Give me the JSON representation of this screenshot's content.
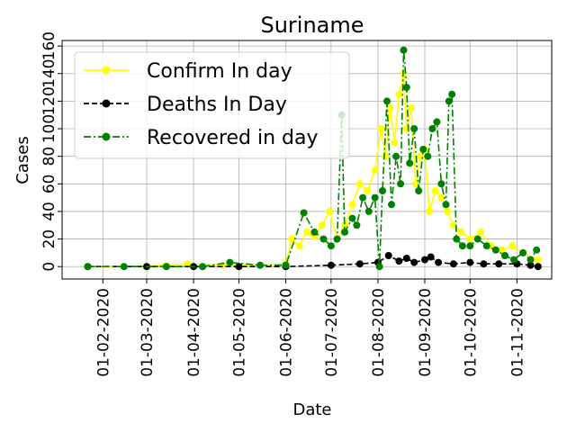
{
  "chart_data": {
    "type": "line",
    "title": "Suriname",
    "xlabel": "Date",
    "ylabel": "Cases",
    "xlim": [
      "2020-01-05",
      "2020-11-24"
    ],
    "ylim": [
      -9,
      164
    ],
    "grid": true,
    "legend_position": "top-left",
    "x_ticks": [
      "01-02-2020",
      "01-03-2020",
      "01-04-2020",
      "01-05-2020",
      "01-06-2020",
      "01-07-2020",
      "01-08-2020",
      "01-09-2020",
      "01-10-2020",
      "01-11-2020"
    ],
    "y_ticks": [
      0,
      20,
      40,
      60,
      80,
      100,
      120,
      140,
      160
    ],
    "series": [
      {
        "name": "Confirm In day",
        "color": "#ffff00",
        "style": "solid",
        "x": [
          "2020-01-22",
          "2020-02-15",
          "2020-03-14",
          "2020-03-28",
          "2020-04-20",
          "2020-05-15",
          "2020-06-01",
          "2020-06-05",
          "2020-06-10",
          "2020-06-15",
          "2020-06-20",
          "2020-06-25",
          "2020-06-30",
          "2020-07-05",
          "2020-07-10",
          "2020-07-15",
          "2020-07-20",
          "2020-07-25",
          "2020-07-30",
          "2020-08-03",
          "2020-08-06",
          "2020-08-09",
          "2020-08-12",
          "2020-08-15",
          "2020-08-18",
          "2020-08-20",
          "2020-08-23",
          "2020-08-26",
          "2020-08-29",
          "2020-09-01",
          "2020-09-04",
          "2020-09-08",
          "2020-09-12",
          "2020-09-16",
          "2020-09-20",
          "2020-09-25",
          "2020-10-01",
          "2020-10-08",
          "2020-10-15",
          "2020-10-22",
          "2020-10-29",
          "2020-11-05",
          "2020-11-15"
        ],
        "values": [
          0,
          0,
          1,
          2,
          1,
          1,
          2,
          20,
          15,
          25,
          22,
          30,
          40,
          20,
          30,
          45,
          60,
          55,
          70,
          100,
          80,
          115,
          90,
          125,
          140,
          100,
          115,
          60,
          80,
          85,
          40,
          55,
          50,
          40,
          30,
          25,
          20,
          25,
          15,
          12,
          15,
          10,
          5
        ]
      },
      {
        "name": "Deaths In Day",
        "color": "#000000",
        "style": "dashed",
        "x": [
          "2020-01-22",
          "2020-03-01",
          "2020-04-01",
          "2020-05-01",
          "2020-06-01",
          "2020-07-01",
          "2020-07-20",
          "2020-08-01",
          "2020-08-08",
          "2020-08-15",
          "2020-08-20",
          "2020-08-25",
          "2020-09-01",
          "2020-09-05",
          "2020-09-10",
          "2020-09-20",
          "2020-10-01",
          "2020-10-10",
          "2020-10-20",
          "2020-11-01",
          "2020-11-10",
          "2020-11-15"
        ],
        "values": [
          0,
          0,
          0,
          0,
          0,
          1,
          2,
          3,
          8,
          4,
          6,
          3,
          5,
          7,
          3,
          2,
          3,
          2,
          2,
          2,
          1,
          0
        ]
      },
      {
        "name": "Recovered in day",
        "color": "#008000",
        "style": "dashdot",
        "x": [
          "2020-01-22",
          "2020-02-15",
          "2020-03-14",
          "2020-04-07",
          "2020-04-25",
          "2020-05-15",
          "2020-06-01",
          "2020-06-13",
          "2020-06-20",
          "2020-06-26",
          "2020-07-01",
          "2020-07-05",
          "2020-07-08",
          "2020-07-10",
          "2020-07-15",
          "2020-07-18",
          "2020-07-22",
          "2020-07-26",
          "2020-07-30",
          "2020-08-02",
          "2020-08-04",
          "2020-08-07",
          "2020-08-10",
          "2020-08-13",
          "2020-08-16",
          "2020-08-18",
          "2020-08-20",
          "2020-08-22",
          "2020-08-25",
          "2020-08-28",
          "2020-08-31",
          "2020-09-03",
          "2020-09-06",
          "2020-09-09",
          "2020-09-12",
          "2020-09-15",
          "2020-09-17",
          "2020-09-19",
          "2020-09-22",
          "2020-09-26",
          "2020-10-01",
          "2020-10-06",
          "2020-10-12",
          "2020-10-18",
          "2020-10-24",
          "2020-10-30",
          "2020-11-05",
          "2020-11-10",
          "2020-11-14"
        ],
        "values": [
          0,
          0,
          0,
          0,
          3,
          1,
          1,
          39,
          25,
          20,
          15,
          20,
          110,
          25,
          35,
          30,
          50,
          40,
          50,
          0,
          55,
          120,
          45,
          80,
          60,
          157,
          130,
          75,
          100,
          55,
          85,
          80,
          100,
          105,
          60,
          45,
          120,
          125,
          20,
          15,
          15,
          20,
          15,
          12,
          8,
          5,
          10,
          5,
          12
        ]
      }
    ]
  }
}
